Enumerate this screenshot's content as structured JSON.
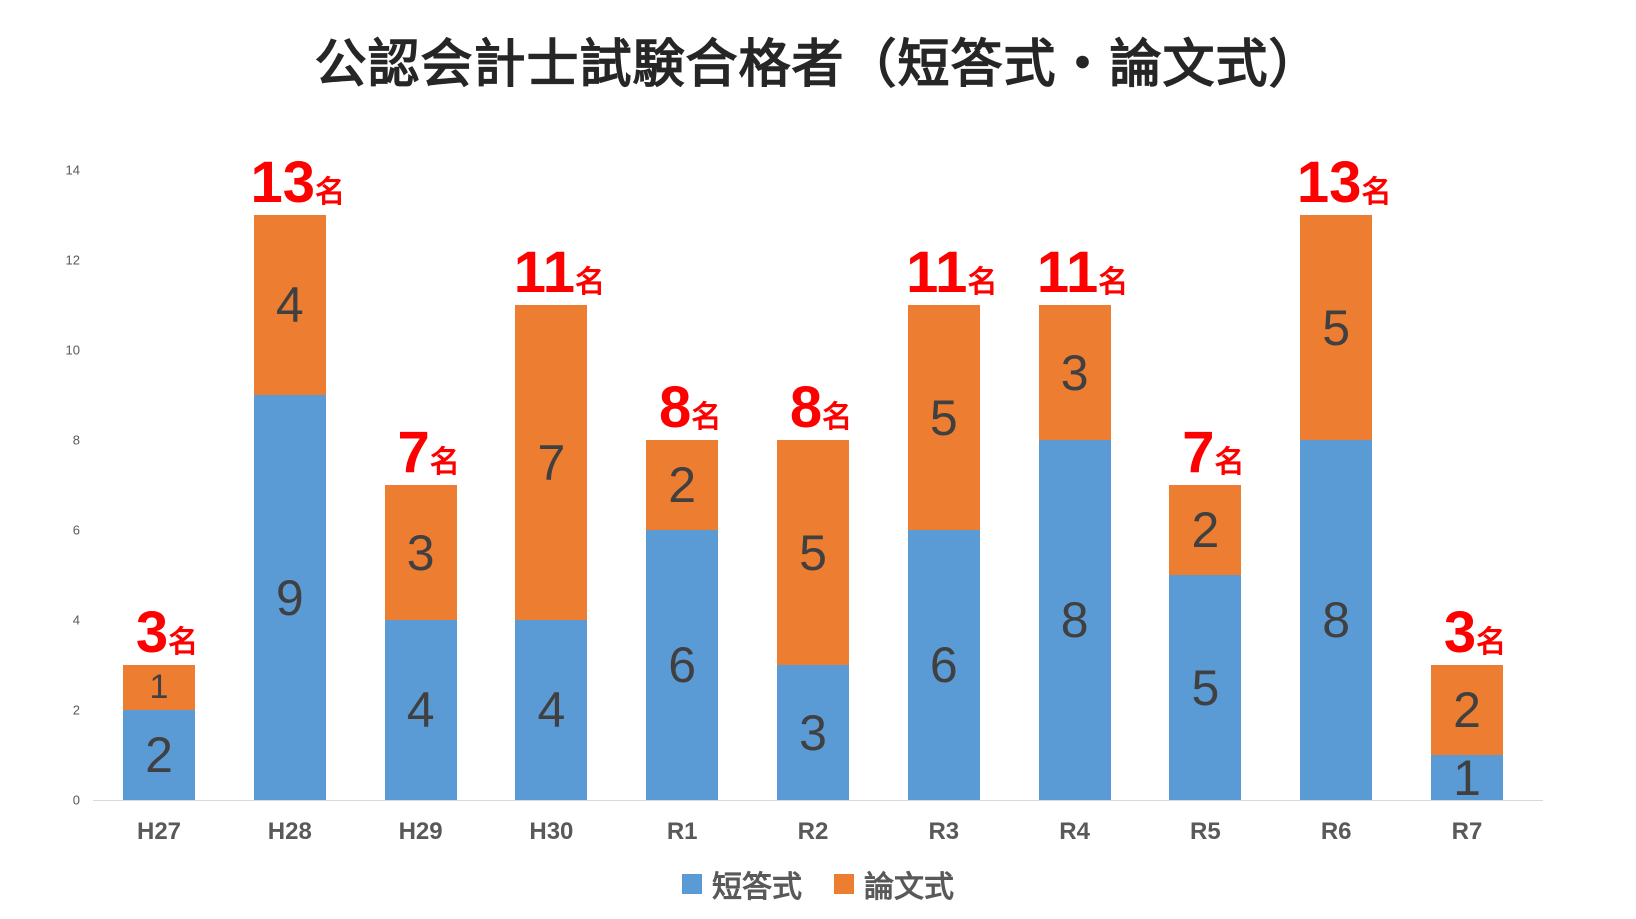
{
  "chart_data": {
    "type": "bar",
    "stacked": true,
    "title": "公認会計士試験合格者（短答式・論文式）",
    "xlabel": "",
    "ylabel": "",
    "ylim": [
      0,
      14
    ],
    "yticks": [
      0,
      2,
      4,
      6,
      8,
      10,
      12,
      14
    ],
    "grid": false,
    "legend_position": "bottom",
    "categories": [
      "H27",
      "H28",
      "H29",
      "H30",
      "R1",
      "R2",
      "R3",
      "R4",
      "R5",
      "R6",
      "R7"
    ],
    "series": [
      {
        "name": "短答式",
        "color": "#5b9bd5",
        "values": [
          2,
          9,
          4,
          4,
          6,
          3,
          6,
          8,
          5,
          8,
          1
        ]
      },
      {
        "name": "論文式",
        "color": "#ed7d31",
        "values": [
          1,
          4,
          3,
          7,
          2,
          5,
          5,
          3,
          2,
          5,
          2
        ]
      }
    ],
    "totals": [
      3,
      13,
      7,
      11,
      8,
      8,
      11,
      11,
      7,
      13,
      3
    ],
    "total_unit": "名",
    "total_label_color": "#ff0000"
  },
  "title": "公認会計士試験合格者（短答式・論文式）",
  "legend": [
    {
      "label": "短答式",
      "color": "#5b9bd5"
    },
    {
      "label": "論文式",
      "color": "#ed7d31"
    }
  ]
}
